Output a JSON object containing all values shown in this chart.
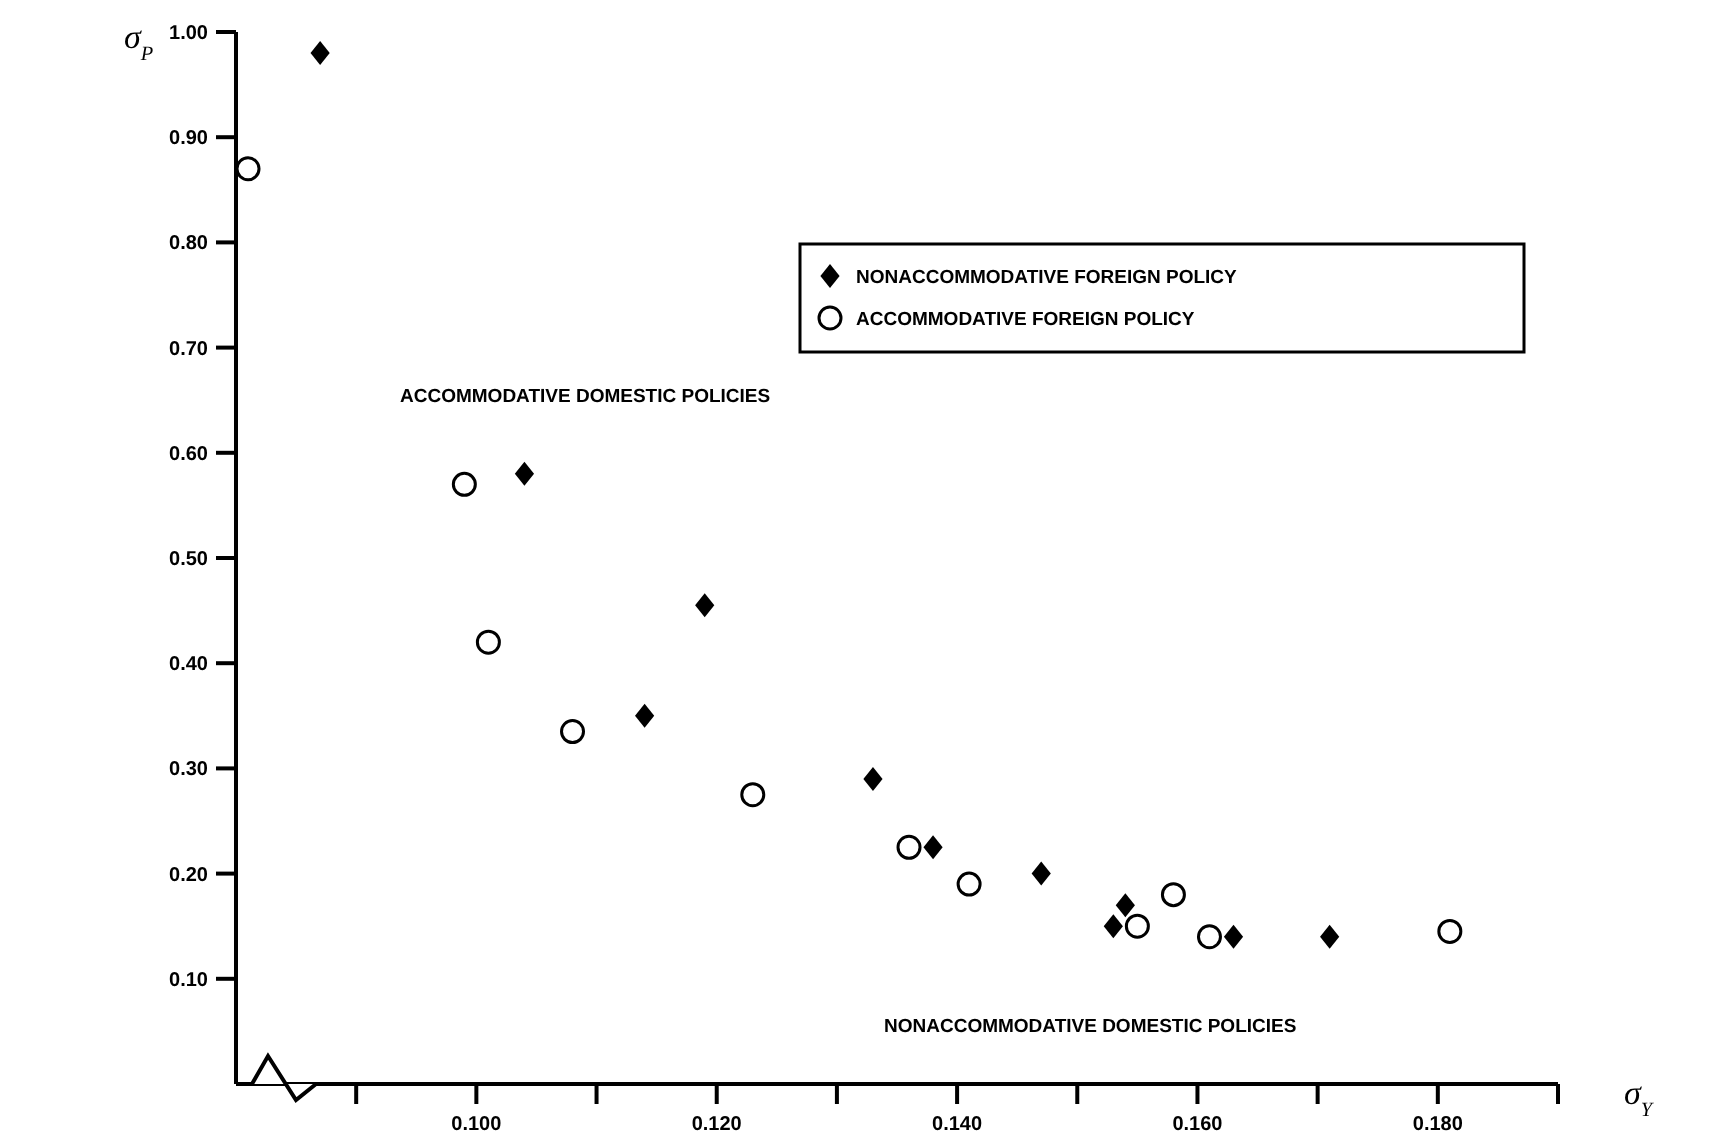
{
  "chart_data": {
    "type": "scatter",
    "xlabel": "σ$_{Y}$",
    "ylabel": "σ$_{P}$",
    "annotations": [
      "ACCOMMODATIVE DOMESTIC POLICIES",
      "NONACCOMMODATIVE DOMESTIC POLICIES"
    ],
    "xlim": [
      0.08,
      0.19
    ],
    "ylim": [
      0,
      1.0
    ],
    "xticks": [
      {
        "value": 0.09,
        "label": null
      },
      {
        "value": 0.1,
        "label": "0.100"
      },
      {
        "value": 0.11,
        "label": null
      },
      {
        "value": 0.12,
        "label": "0.120"
      },
      {
        "value": 0.13,
        "label": null
      },
      {
        "value": 0.14,
        "label": "0.140"
      },
      {
        "value": 0.15,
        "label": null
      },
      {
        "value": 0.16,
        "label": "0.160"
      },
      {
        "value": 0.17,
        "label": null
      },
      {
        "value": 0.18,
        "label": "0.180"
      },
      {
        "value": 0.19,
        "label": null
      }
    ],
    "yticks": [
      {
        "value": 0.1,
        "label": "0.10"
      },
      {
        "value": 0.2,
        "label": "0.20"
      },
      {
        "value": 0.3,
        "label": "0.30"
      },
      {
        "value": 0.4,
        "label": "0.40"
      },
      {
        "value": 0.5,
        "label": "0.50"
      },
      {
        "value": 0.6,
        "label": "0.60"
      },
      {
        "value": 0.7,
        "label": "0.70"
      },
      {
        "value": 0.8,
        "label": "0.80"
      },
      {
        "value": 0.9,
        "label": "0.90"
      },
      {
        "value": 1.0,
        "label": "1.00"
      }
    ],
    "legend": "top right",
    "grid": false,
    "series": [
      {
        "name": "NONACCOMMODATIVE FOREIGN POLICY",
        "color": "#000000",
        "marker": "diamond",
        "x": [
          0.087,
          0.104,
          0.119,
          0.114,
          0.133,
          0.138,
          0.147,
          0.154,
          0.153,
          0.163,
          0.171
        ],
        "values": [
          0.98,
          0.58,
          0.455,
          0.35,
          0.29,
          0.225,
          0.2,
          0.17,
          0.15,
          0.14,
          0.14
        ]
      },
      {
        "name": "ACCOMMODATIVE FOREIGN POLICY",
        "color": "#000000",
        "marker": "circle",
        "x": [
          0.081,
          0.099,
          0.101,
          0.108,
          0.123,
          0.136,
          0.141,
          0.155,
          0.158,
          0.161,
          0.181
        ],
        "values": [
          0.87,
          0.57,
          0.42,
          0.335,
          0.275,
          0.225,
          0.19,
          0.15,
          0.18,
          0.14,
          0.145
        ]
      }
    ]
  }
}
